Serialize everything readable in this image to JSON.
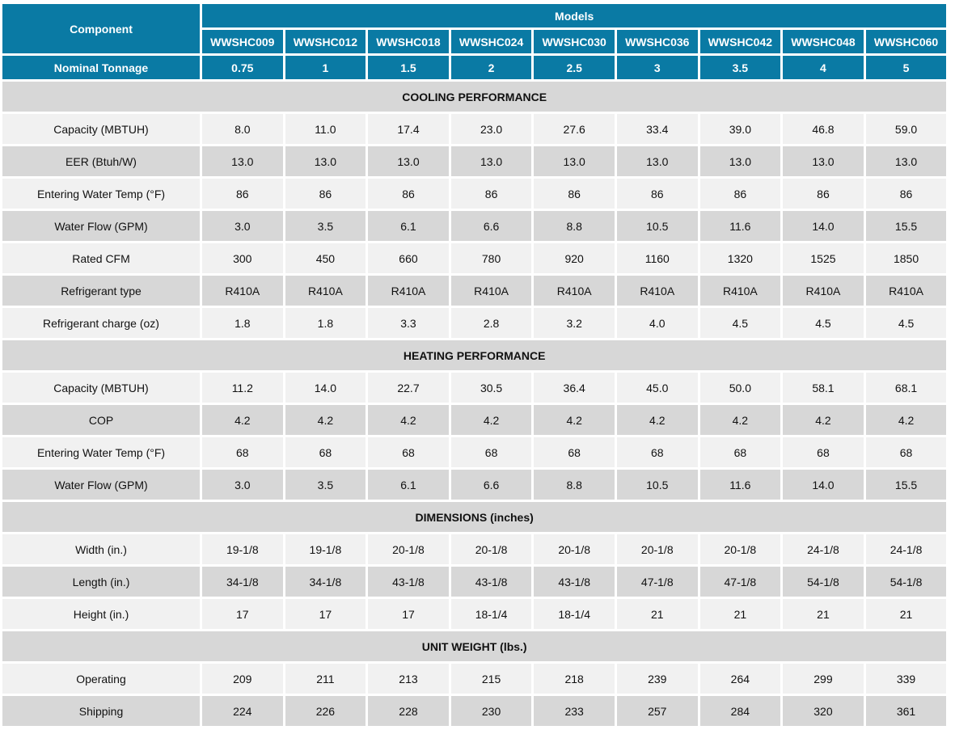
{
  "header": {
    "component_label": "Component",
    "models_label": "Models",
    "models": [
      "WWSHC009",
      "WWSHC012",
      "WWSHC018",
      "WWSHC024",
      "WWSHC030",
      "WWSHC036",
      "WWSHC042",
      "WWSHC048",
      "WWSHC060"
    ],
    "tonnage_label": "Nominal Tonnage",
    "tonnage": [
      "0.75",
      "1",
      "1.5",
      "2",
      "2.5",
      "3",
      "3.5",
      "4",
      "5"
    ]
  },
  "sections": [
    {
      "title": "COOLING PERFORMANCE",
      "rows": [
        {
          "label": "Capacity (MBTUH)",
          "values": [
            "8.0",
            "11.0",
            "17.4",
            "23.0",
            "27.6",
            "33.4",
            "39.0",
            "46.8",
            "59.0"
          ]
        },
        {
          "label": "EER (Btuh/W)",
          "values": [
            "13.0",
            "13.0",
            "13.0",
            "13.0",
            "13.0",
            "13.0",
            "13.0",
            "13.0",
            "13.0"
          ]
        },
        {
          "label": "Entering Water Temp (°F)",
          "values": [
            "86",
            "86",
            "86",
            "86",
            "86",
            "86",
            "86",
            "86",
            "86"
          ]
        },
        {
          "label": "Water Flow (GPM)",
          "values": [
            "3.0",
            "3.5",
            "6.1",
            "6.6",
            "8.8",
            "10.5",
            "11.6",
            "14.0",
            "15.5"
          ]
        },
        {
          "label": "Rated CFM",
          "values": [
            "300",
            "450",
            "660",
            "780",
            "920",
            "1160",
            "1320",
            "1525",
            "1850"
          ]
        },
        {
          "label": "Refrigerant type",
          "values": [
            "R410A",
            "R410A",
            "R410A",
            "R410A",
            "R410A",
            "R410A",
            "R410A",
            "R410A",
            "R410A"
          ]
        },
        {
          "label": "Refrigerant charge (oz)",
          "values": [
            "1.8",
            "1.8",
            "3.3",
            "2.8",
            "3.2",
            "4.0",
            "4.5",
            "4.5",
            "4.5"
          ]
        }
      ]
    },
    {
      "title": "HEATING PERFORMANCE",
      "rows": [
        {
          "label": "Capacity (MBTUH)",
          "values": [
            "11.2",
            "14.0",
            "22.7",
            "30.5",
            "36.4",
            "45.0",
            "50.0",
            "58.1",
            "68.1"
          ]
        },
        {
          "label": "COP",
          "values": [
            "4.2",
            "4.2",
            "4.2",
            "4.2",
            "4.2",
            "4.2",
            "4.2",
            "4.2",
            "4.2"
          ]
        },
        {
          "label": "Entering Water Temp (°F)",
          "values": [
            "68",
            "68",
            "68",
            "68",
            "68",
            "68",
            "68",
            "68",
            "68"
          ]
        },
        {
          "label": "Water Flow (GPM)",
          "values": [
            "3.0",
            "3.5",
            "6.1",
            "6.6",
            "8.8",
            "10.5",
            "11.6",
            "14.0",
            "15.5"
          ]
        }
      ]
    },
    {
      "title": "DIMENSIONS (inches)",
      "rows": [
        {
          "label": "Width (in.)",
          "values": [
            "19-1/8",
            "19-1/8",
            "20-1/8",
            "20-1/8",
            "20-1/8",
            "20-1/8",
            "20-1/8",
            "24-1/8",
            "24-1/8"
          ]
        },
        {
          "label": "Length (in.)",
          "values": [
            "34-1/8",
            "34-1/8",
            "43-1/8",
            "43-1/8",
            "43-1/8",
            "47-1/8",
            "47-1/8",
            "54-1/8",
            "54-1/8"
          ]
        },
        {
          "label": "Height (in.)",
          "values": [
            "17",
            "17",
            "17",
            "18-1/4",
            "18-1/4",
            "21",
            "21",
            "21",
            "21"
          ]
        }
      ]
    },
    {
      "title": "UNIT WEIGHT (lbs.)",
      "rows": [
        {
          "label": "Operating",
          "values": [
            "209",
            "211",
            "213",
            "215",
            "218",
            "239",
            "264",
            "299",
            "339"
          ]
        },
        {
          "label": "Shipping",
          "values": [
            "224",
            "226",
            "228",
            "230",
            "233",
            "257",
            "284",
            "320",
            "361"
          ]
        }
      ]
    }
  ],
  "colors": {
    "header_blue": "#0a7aa4",
    "section_gray": "#d7d7d7",
    "row_light": "#f1f1f1",
    "row_dark": "#d7d7d7"
  }
}
